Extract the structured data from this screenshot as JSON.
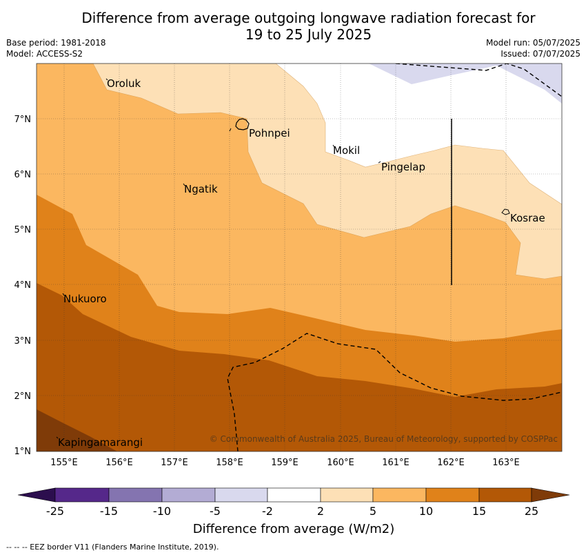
{
  "title_line1": "Difference from average outgoing longwave radiation forecast for",
  "title_line2": "19 to 25 July 2025",
  "base_period": "Base period: 1981-2018",
  "model": "Model: ACCESS-S2",
  "model_run": "Model run: 05/07/2025",
  "issued": "Issued: 07/07/2025",
  "copyright": "© Commonwealth of Australia 2025, Bureau of Meteorology, supported by COSPPac",
  "footnote": "--  --  -- EEZ border V11 (Flanders Marine Institute, 2019).",
  "x_ticks": [
    "155°E",
    "156°E",
    "157°E",
    "158°E",
    "159°E",
    "160°E",
    "161°E",
    "162°E",
    "163°E"
  ],
  "y_ticks": [
    "7°N",
    "6°N",
    "5°N",
    "4°N",
    "3°N",
    "2°N",
    "1°N"
  ],
  "places": {
    "oroluk": "Oroluk",
    "pohnpei": "Pohnpei",
    "mokil": "Mokil",
    "pingelap": "Pingelap",
    "ngatik": "Ngatik",
    "kosrae": "Kosrae",
    "nukuoro": "Nukuoro",
    "kapingamarangi": "Kapingamarangi"
  },
  "colorbar": {
    "title": "Difference from average (W/m2)",
    "labels": [
      "-25",
      "-15",
      "-10",
      "-5",
      "-2",
      "2",
      "5",
      "10",
      "15",
      "25"
    ],
    "colors": [
      "#2c0e4e",
      "#55288a",
      "#8474b0",
      "#b3acd4",
      "#d9d9ee",
      "#ffffff",
      "#fde0b6",
      "#fbb760",
      "#e0821a",
      "#b35806",
      "#7f3b08"
    ]
  },
  "map_colors": {
    "band_2_5": "#fde0b6",
    "band_5_10": "#fbb760",
    "band_10_15": "#e0821a",
    "band_15_25": "#b35806",
    "band_gt25": "#7f3b08",
    "band_neg": "#d9d9ee"
  }
}
